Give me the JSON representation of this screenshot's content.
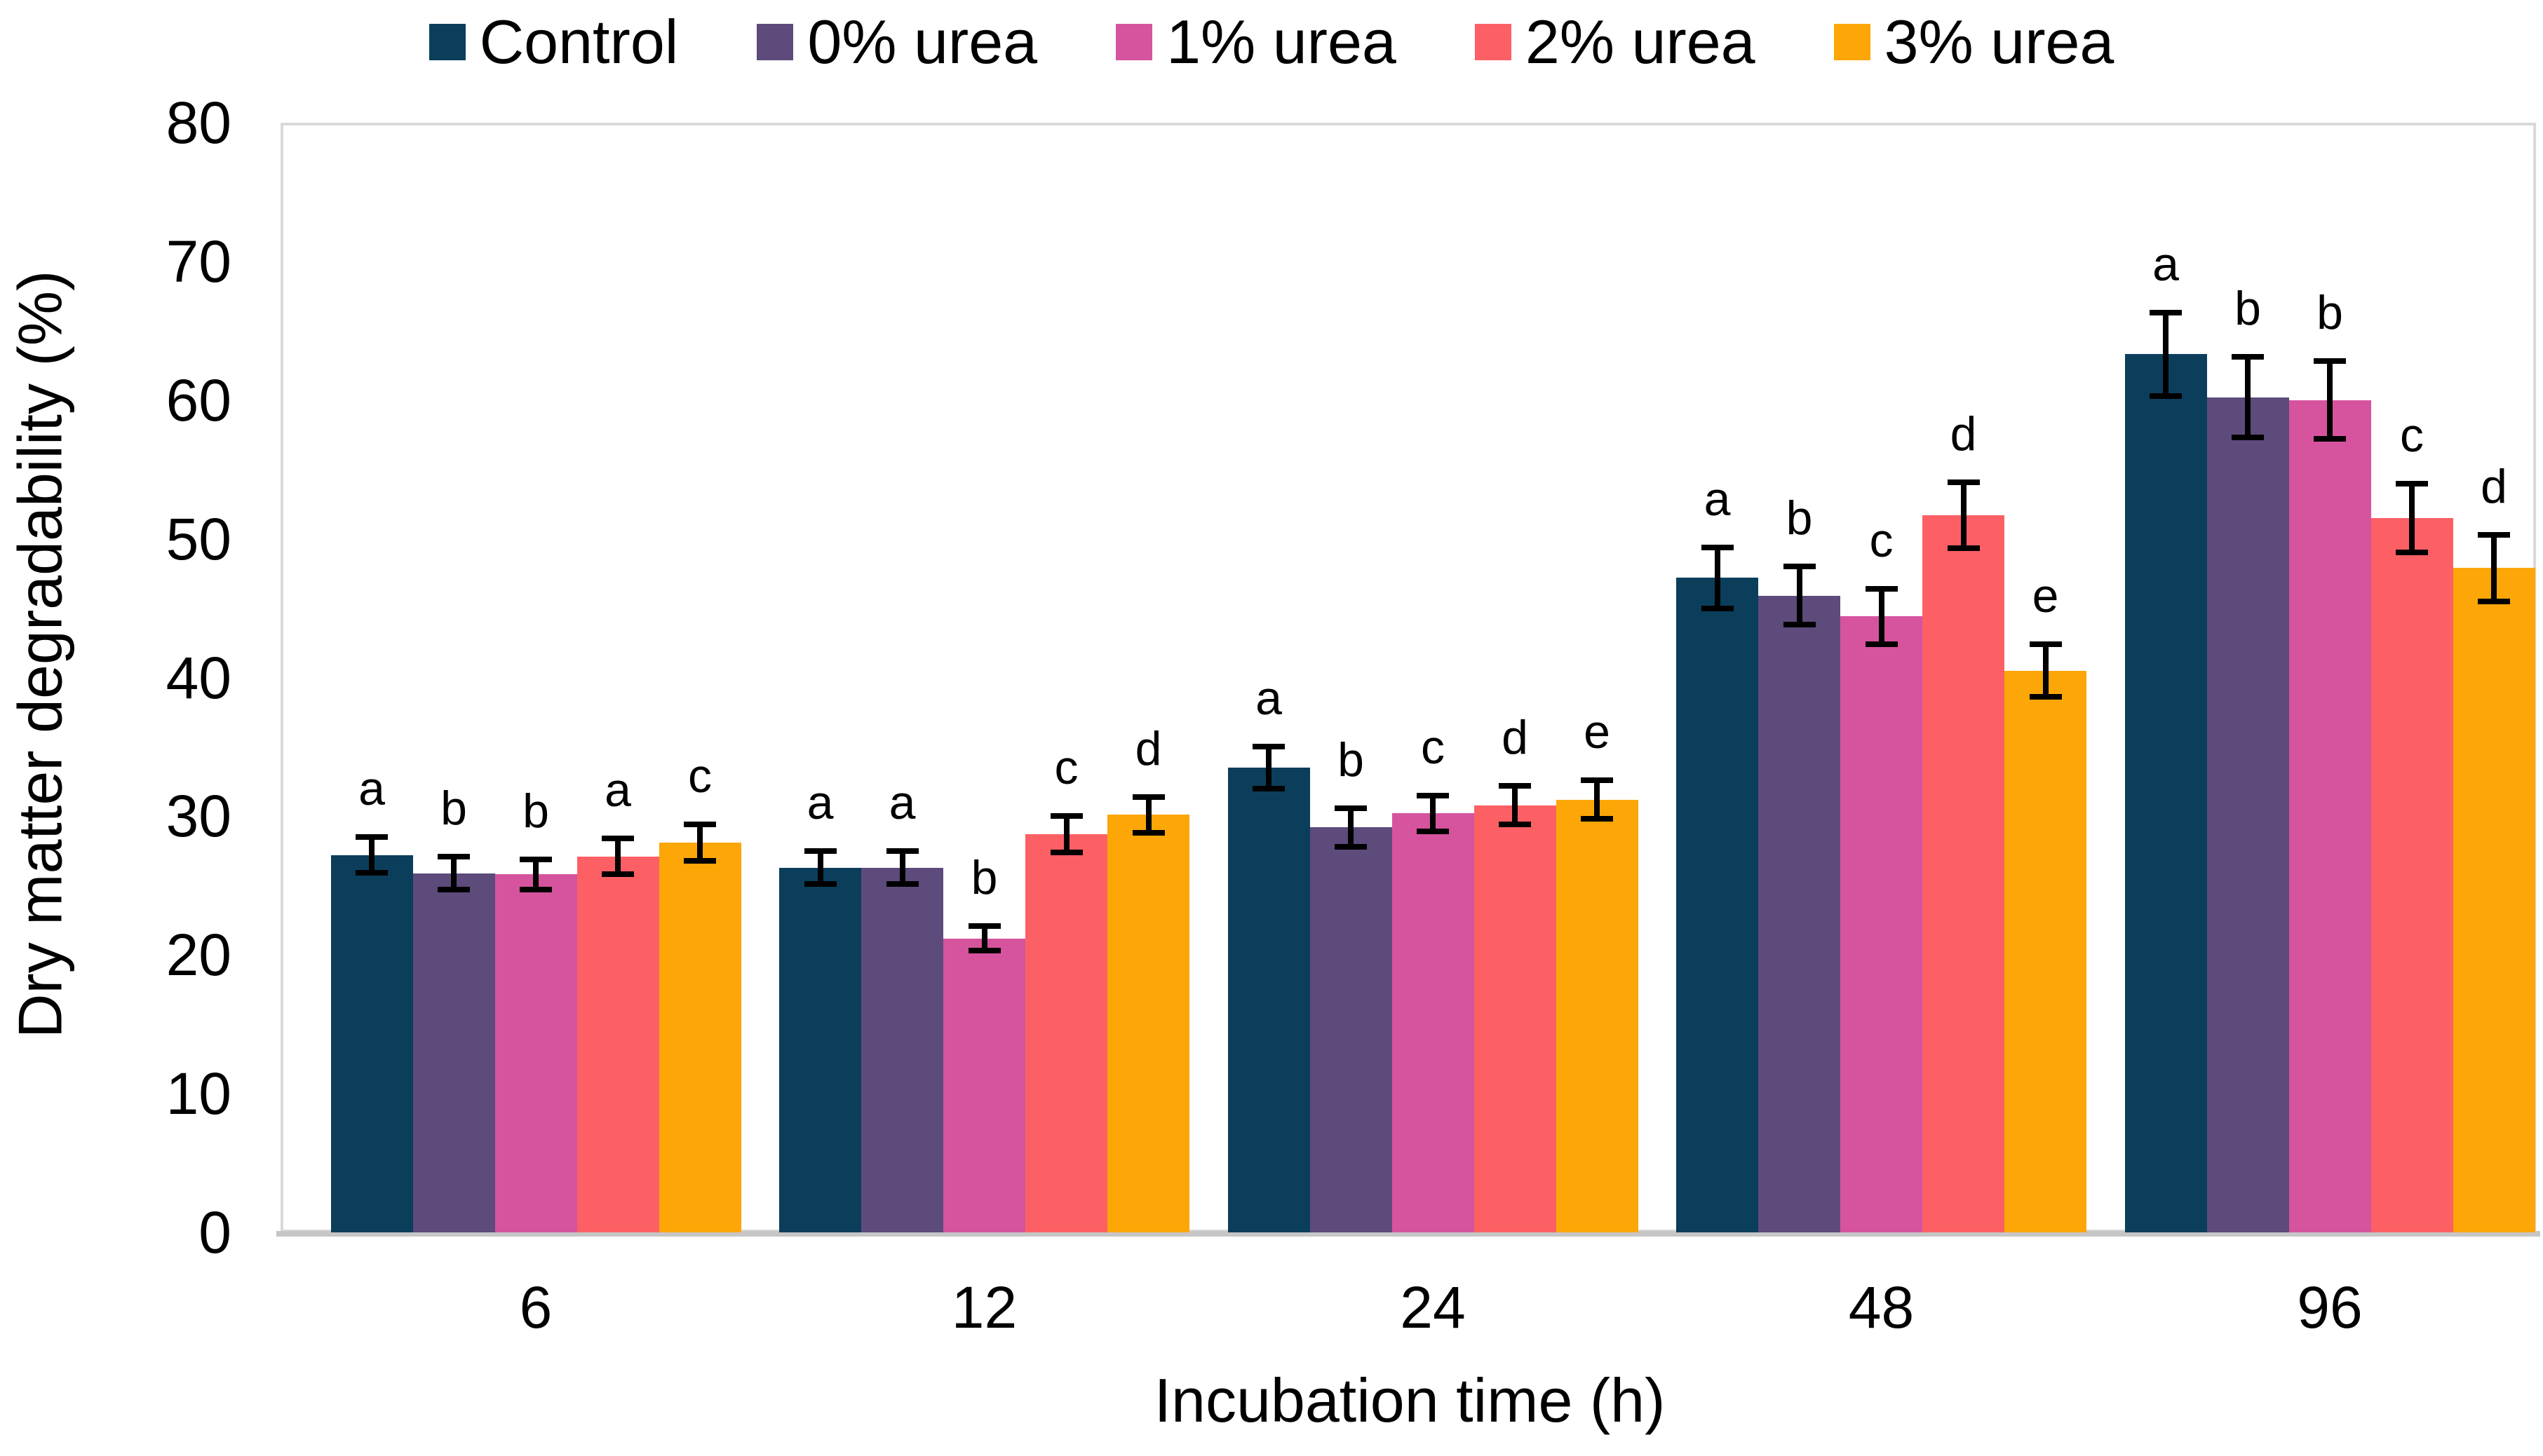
{
  "legend": {
    "position": "top-center",
    "items": [
      {
        "label": "Control",
        "color": "#0B3E5B"
      },
      {
        "label": "0% urea",
        "color": "#5D4B7C"
      },
      {
        "label": "1% urea",
        "color": "#D6549E"
      },
      {
        "label": "2% urea",
        "color": "#FC6065"
      },
      {
        "label": "3% urea",
        "color": "#FCA608"
      }
    ]
  },
  "chart_data": {
    "type": "bar",
    "title": "",
    "xlabel": "Incubation time (h)",
    "ylabel": "Dry matter degradability  (%)",
    "categories": [
      "6",
      "12",
      "24",
      "48",
      "96"
    ],
    "ylim": [
      0,
      80
    ],
    "yticks": [
      0,
      10,
      20,
      30,
      40,
      50,
      60,
      70,
      80
    ],
    "grid": "off",
    "legend_position": "top",
    "error_bars": "plus-minus, black caps",
    "series": [
      {
        "name": "Control",
        "color": "#0B3E5B",
        "values": [
          27.2,
          26.3,
          33.5,
          47.2,
          63.3
        ],
        "errors": [
          1.5,
          1.4,
          1.7,
          2.4,
          3.2
        ],
        "letters": [
          "a",
          "a",
          "a",
          "a",
          "a"
        ]
      },
      {
        "name": "0% urea",
        "color": "#5D4B7C",
        "values": [
          25.9,
          26.3,
          29.2,
          45.9,
          60.2
        ],
        "errors": [
          1.4,
          1.4,
          1.6,
          2.3,
          3.1
        ],
        "letters": [
          "b",
          "a",
          "b",
          "b",
          "b"
        ]
      },
      {
        "name": "1% urea",
        "color": "#D6549E",
        "values": [
          25.8,
          21.2,
          30.2,
          44.4,
          60.0
        ],
        "errors": [
          1.3,
          1.1,
          1.5,
          2.2,
          3.0
        ],
        "letters": [
          "b",
          "b",
          "c",
          "c",
          "b"
        ]
      },
      {
        "name": "2% urea",
        "color": "#FC6065",
        "values": [
          27.1,
          28.7,
          30.8,
          51.7,
          51.5
        ],
        "errors": [
          1.5,
          1.5,
          1.6,
          2.6,
          2.7
        ],
        "letters": [
          "a",
          "c",
          "d",
          "d",
          "c"
        ]
      },
      {
        "name": "3% urea",
        "color": "#FCA608",
        "values": [
          28.1,
          30.1,
          31.2,
          40.5,
          47.9
        ],
        "errors": [
          1.5,
          1.5,
          1.6,
          2.1,
          2.6
        ],
        "letters": [
          "c",
          "d",
          "e",
          "e",
          "d"
        ]
      }
    ]
  }
}
